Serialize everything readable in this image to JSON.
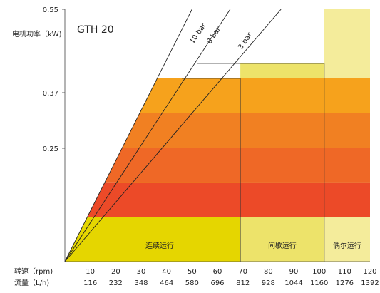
{
  "chart_data": {
    "type": "area",
    "title": "GTH 20",
    "ylabel": "电机功率（kW)",
    "y_ticks": [
      "0.55",
      "0.37",
      "0.25"
    ],
    "x_rows": [
      {
        "label": "转速（rpm)",
        "ticks": [
          "10",
          "20",
          "30",
          "40",
          "50",
          "60",
          "70",
          "80",
          "90",
          "100",
          "110",
          "120"
        ]
      },
      {
        "label": "流量（L/h)",
        "ticks": [
          "116",
          "232",
          "348",
          "464",
          "580",
          "696",
          "812",
          "928",
          "1044",
          "1160",
          "1276",
          "1392"
        ]
      }
    ],
    "xlim": [
      0,
      120
    ],
    "pressure_lines": [
      {
        "name": "10 bar",
        "rpm_at_max_power": 64
      },
      {
        "name": "8 bar",
        "rpm_at_max_power": 69
      },
      {
        "name": "3 bar",
        "rpm_at_max_power": 86
      }
    ],
    "duty_zones": [
      {
        "name": "连续运行",
        "rpm_max": 69,
        "color": "#e5d600"
      },
      {
        "name": "间歇运行",
        "rpm_max": 102,
        "color": "#ede36a"
      },
      {
        "name": "偶尔运行",
        "rpm_max": 120,
        "color": "#f4ec9b"
      }
    ],
    "power_bands": [
      {
        "color": "#f6a21c"
      },
      {
        "color": "#f18022"
      },
      {
        "color": "#ef6826"
      },
      {
        "color": "#ec4a28"
      },
      {
        "color": "#e8302a"
      }
    ]
  }
}
